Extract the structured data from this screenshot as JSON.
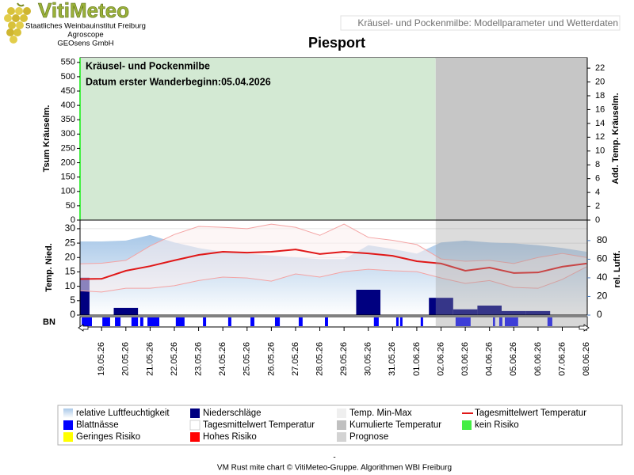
{
  "header": {
    "logo": "VitiMeteo",
    "org_lines": [
      "Staatliches Weinbauinstitut Freiburg",
      "Agroscope",
      "GEOsens GmbH"
    ],
    "subtitle": "Kräusel- und Pockenmilbe: Modellparameter und Wetterdaten"
  },
  "chart_data": [
    {
      "type": "risk",
      "title": "Piesport",
      "annotations": [
        "Kräusel- und Pockenmilbe",
        "Datum  erster Wanderbeginn:05.04.2026"
      ],
      "ylabel": "Tsum Kräuselm.",
      "y2label": "Add. Temp. Kräuselm.",
      "ylim": [
        0,
        566
      ],
      "yticks": [
        0,
        50,
        100,
        150,
        200,
        250,
        300,
        350,
        400,
        450,
        500,
        550
      ],
      "y2lim": [
        0,
        23.5
      ],
      "y2ticks": [
        0,
        2,
        4,
        6,
        8,
        10,
        12,
        14,
        16,
        18,
        20,
        22
      ],
      "background_color": "#d3e9d3"
    },
    {
      "type": "combo",
      "ylabel": "Temp. Nied.",
      "y2label": "rel. Luftf.",
      "ylim": [
        0,
        33
      ],
      "yticks": [
        0,
        5,
        10,
        15,
        20,
        25,
        30
      ],
      "y2lim": [
        0,
        102
      ],
      "y2ticks": [
        0,
        20,
        40,
        60,
        80
      ],
      "grid": true,
      "categories": [
        null,
        "19.05.26",
        "20.05.26",
        "21.05.26",
        "22.05.26",
        "23.05.26",
        "24.05.26",
        "25.05.26",
        "26.05.26",
        "27.05.26",
        "28.05.26",
        "29.05.26",
        "30.05.26",
        "31.05.26",
        "01.06.26",
        "02.06.26",
        "03.06.26",
        "04.06.26",
        "05.06.26",
        "06.06.26",
        "07.06.26",
        "08.06.26"
      ],
      "series": [
        {
          "name": "relative Luftfeuchtigkeit",
          "type": "area",
          "axis": "y2",
          "color": "#a9c8e8",
          "values": [
            79,
            79,
            80,
            86,
            78,
            72,
            68,
            66,
            64,
            62,
            60,
            60,
            75,
            71,
            66,
            78,
            80,
            78,
            77,
            75,
            72,
            68
          ]
        },
        {
          "name": "Niederschläge",
          "type": "bar",
          "color": "#000080",
          "values": [
            13,
            0,
            2.5,
            0,
            0,
            0,
            0,
            0,
            0,
            0,
            0,
            0,
            8.8,
            0,
            0,
            6,
            2,
            3.3,
            1.4,
            1.4,
            0,
            0
          ]
        },
        {
          "name": "Temp. Min-Max",
          "type": "band",
          "color": "#f4a3a3",
          "values": [
            [
              8.5,
              17.8
            ],
            [
              8,
              18
            ],
            [
              9.3,
              19
            ],
            [
              9.3,
              24
            ],
            [
              10.2,
              28
            ],
            [
              12,
              30.8
            ],
            [
              13.2,
              30.5
            ],
            [
              12.9,
              30
            ],
            [
              11.8,
              31.6
            ],
            [
              14.3,
              30.5
            ],
            [
              13.2,
              27.7
            ],
            [
              15.1,
              31.6
            ],
            [
              15.9,
              27
            ],
            [
              15.4,
              26
            ],
            [
              15.1,
              24.5
            ],
            [
              12.9,
              19.5
            ],
            [
              11,
              18.7
            ],
            [
              12,
              19
            ],
            [
              9.6,
              17.9
            ],
            [
              9.3,
              20
            ],
            [
              12.4,
              21.4
            ],
            [
              16.8,
              20
            ]
          ]
        },
        {
          "name": "Tagesmittelwert Temperatur",
          "type": "line",
          "color": "#e01818",
          "values": [
            12.5,
            12.6,
            15.4,
            17,
            19,
            20.9,
            22,
            21.7,
            22,
            22.8,
            21.2,
            22,
            21.4,
            20.6,
            18.7,
            17.9,
            15.4,
            16.5,
            14.6,
            14.8,
            16.8,
            17.9
          ]
        }
      ]
    },
    {
      "type": "timeline",
      "ylabel": "BN",
      "color": "#0000ff",
      "xlim": [
        0,
        20.92
      ],
      "forecast_start": 14.67,
      "intervals": [
        [
          0.07,
          0.49
        ],
        [
          0.92,
          1.24
        ],
        [
          1.44,
          1.67
        ],
        [
          2.12,
          2.39
        ],
        [
          2.48,
          2.61
        ],
        [
          2.78,
          3.27
        ],
        [
          3.95,
          4.31
        ],
        [
          5.07,
          5.2
        ],
        [
          6.11,
          6.24
        ],
        [
          7.03,
          7.19
        ],
        [
          8.04,
          8.24
        ],
        [
          9.02,
          9.18
        ],
        [
          10.1,
          10.23
        ],
        [
          12.12,
          12.32
        ],
        [
          13.04,
          13.14
        ],
        [
          13.2,
          13.3
        ],
        [
          14.05,
          14.15
        ],
        [
          15.49,
          16.11
        ],
        [
          17.03,
          17.12
        ],
        [
          17.29,
          17.42
        ],
        [
          17.52,
          18.07
        ],
        [
          19.28,
          19.48
        ]
      ]
    }
  ],
  "legend": [
    {
      "name": "relative Luftfeuchtigkeit",
      "color": "#a9c8e8",
      "style": "gradient"
    },
    {
      "name": "Niederschläge",
      "color": "#000080",
      "style": "box"
    },
    {
      "name": "Temp. Min-Max",
      "color": "#efefef",
      "style": "box"
    },
    {
      "name": "Tagesmittelwert Temperatur",
      "color": "#e01818",
      "style": "line"
    },
    {
      "name": "Blattnässe",
      "color": "#0000ff",
      "style": "box"
    },
    {
      "name": "Tagesmittelwert Temperatur",
      "color": "#ffffff",
      "style": "box"
    },
    {
      "name": "Kumulierte Temperatur",
      "color": "#c0c0c0",
      "style": "box"
    },
    {
      "name": "kein Risiko",
      "color": "#44ee44",
      "style": "box"
    },
    {
      "name": "Geringes Risiko",
      "color": "#ffff00",
      "style": "box"
    },
    {
      "name": "Hohes Risiko",
      "color": "#ff0000",
      "style": "box"
    },
    {
      "name": "Prognose",
      "color": "#d3d3d3",
      "style": "box"
    }
  ],
  "footer": [
    "-",
    "VM Rust mite chart © VitiMeteo-Gruppe. Algorithmen WBI Freiburg"
  ]
}
